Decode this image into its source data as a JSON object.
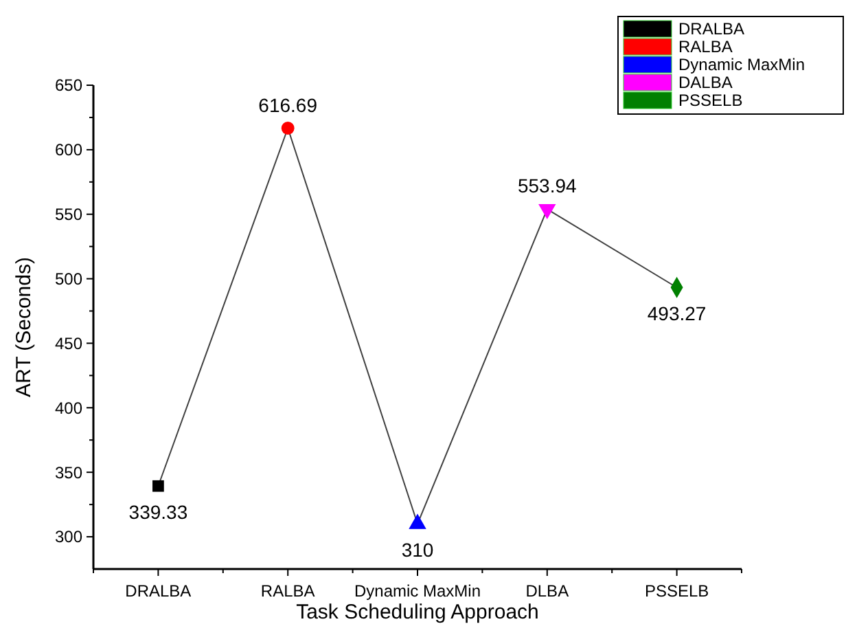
{
  "chart_data": {
    "type": "line",
    "xlabel": "Task Scheduling Approach",
    "ylabel": "ART (Seconds)",
    "categories": [
      "DRALBA",
      "RALBA",
      "Dynamic MaxMin",
      "DLBA",
      "PSSELB"
    ],
    "series": [
      {
        "color": "#404040",
        "marker": "none",
        "values": [
          339.33,
          616.69,
          310,
          553.94,
          493.27
        ],
        "value_labels": [
          "339.33",
          "616.69",
          "310",
          "553.94",
          "493.27"
        ]
      },
      {
        "type": "scatter",
        "name": "DRALBA",
        "color": "#000000",
        "marker": "square",
        "x": [
          "DRALBA"
        ],
        "values": [
          339.33
        ]
      },
      {
        "type": "scatter",
        "name": "RALBA",
        "color": "#ff0000",
        "marker": "circle",
        "x": [
          "RALBA"
        ],
        "values": [
          616.69
        ]
      },
      {
        "type": "scatter",
        "name": "Dynamic MaxMin",
        "color": "#0000ff",
        "marker": "triangle",
        "x": [
          "Dynamic MaxMin"
        ],
        "values": [
          310
        ]
      },
      {
        "type": "scatter",
        "name": "DALBA",
        "color": "#ff00ff",
        "marker": "triangle-down",
        "x": [
          "DLBA"
        ],
        "values": [
          553.94
        ]
      },
      {
        "type": "scatter",
        "name": "PSSELB",
        "color": "#008000",
        "marker": "diamond",
        "x": [
          "PSSELB"
        ],
        "values": [
          493.27
        ]
      }
    ],
    "ylim": [
      275,
      650
    ],
    "yticks": [
      300,
      {
        "value": 325,
        "label": null
      },
      350,
      {
        "value": 375,
        "label": null
      },
      400,
      {
        "value": 425,
        "label": null
      },
      450,
      {
        "value": 475,
        "label": null
      },
      500,
      {
        "value": 525,
        "label": null
      },
      550,
      {
        "value": 575,
        "label": null
      },
      600,
      {
        "value": 625,
        "label": null
      },
      650
    ],
    "legend": "top right",
    "grid": false
  }
}
